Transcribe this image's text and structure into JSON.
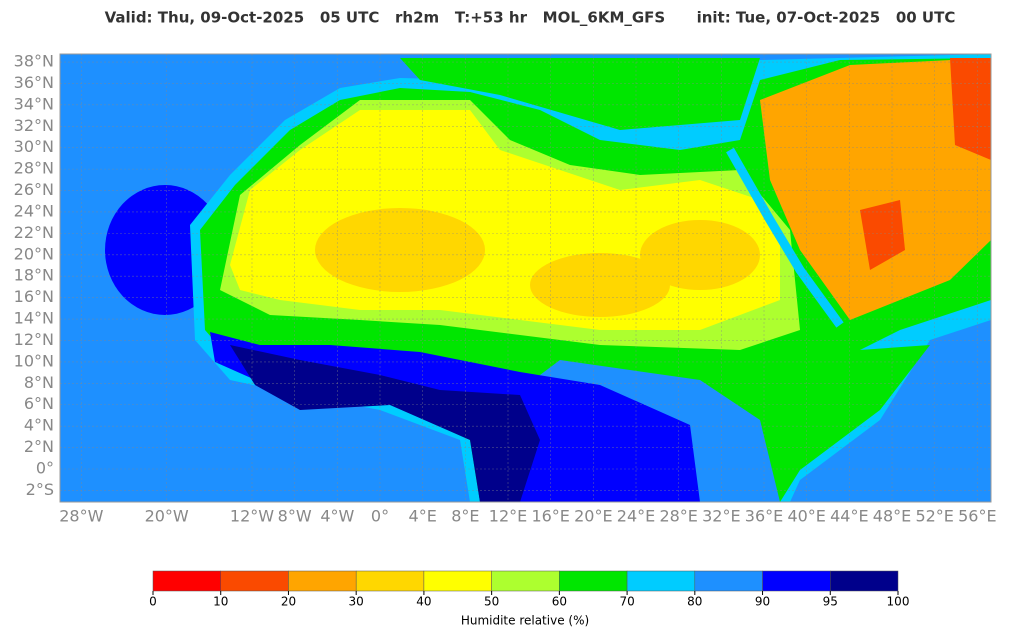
{
  "header": {
    "title": "Valid: Thu, 09-Oct-2025   05 UTC   rh2m   T:+53 hr   MOL_6KM_GFS      init: Tue, 07-Oct-2025   00 UTC"
  },
  "map": {
    "lat_labels": [
      {
        "value": 38,
        "label": "38°N"
      },
      {
        "value": 36,
        "label": "36°N"
      },
      {
        "value": 34,
        "label": "34°N"
      },
      {
        "value": 32,
        "label": "32°N"
      },
      {
        "value": 30,
        "label": "30°N"
      },
      {
        "value": 28,
        "label": "28°N"
      },
      {
        "value": 26,
        "label": "26°N"
      },
      {
        "value": 24,
        "label": "24°N"
      },
      {
        "value": 22,
        "label": "22°N"
      },
      {
        "value": 20,
        "label": "20°N"
      },
      {
        "value": 18,
        "label": "18°N"
      },
      {
        "value": 16,
        "label": "16°N"
      },
      {
        "value": 14,
        "label": "14°N"
      },
      {
        "value": 12,
        "label": "12°N"
      },
      {
        "value": 10,
        "label": "10°N"
      },
      {
        "value": 8,
        "label": "8°N"
      },
      {
        "value": 6,
        "label": "6°N"
      },
      {
        "value": 4,
        "label": "4°N"
      },
      {
        "value": 2,
        "label": "2°N"
      },
      {
        "value": 0,
        "label": "0°"
      },
      {
        "value": -2,
        "label": "2°S"
      }
    ],
    "lon_labels": [
      {
        "value": -28,
        "label": "28°W"
      },
      {
        "value": -20,
        "label": "20°W"
      },
      {
        "value": -12,
        "label": "12°W"
      },
      {
        "value": -8,
        "label": "8°W"
      },
      {
        "value": -4,
        "label": "4°W"
      },
      {
        "value": 0,
        "label": "0°"
      },
      {
        "value": 4,
        "label": "4°E"
      },
      {
        "value": 8,
        "label": "8°E"
      },
      {
        "value": 12,
        "label": "12°E"
      },
      {
        "value": 16,
        "label": "16°E"
      },
      {
        "value": 20,
        "label": "20°E"
      },
      {
        "value": 24,
        "label": "24°E"
      },
      {
        "value": 28,
        "label": "28°E"
      },
      {
        "value": 32,
        "label": "32°E"
      },
      {
        "value": 36,
        "label": "36°E"
      },
      {
        "value": 40,
        "label": "40°E"
      },
      {
        "value": 44,
        "label": "44°E"
      },
      {
        "value": 48,
        "label": "48°E"
      },
      {
        "value": 52,
        "label": "52°E"
      },
      {
        "value": 56,
        "label": "56°E"
      }
    ]
  },
  "colorbar": {
    "ticks": [
      0,
      10,
      20,
      30,
      40,
      50,
      60,
      70,
      80,
      90,
      95,
      100
    ],
    "colors": [
      "#ff0000",
      "#fa4a00",
      "#ffa500",
      "#ffd700",
      "#ffff00",
      "#adff2f",
      "#00e600",
      "#00ccff",
      "#1e90ff",
      "#0000ff",
      "#00008b"
    ],
    "label": "Humidite relative (%)"
  }
}
